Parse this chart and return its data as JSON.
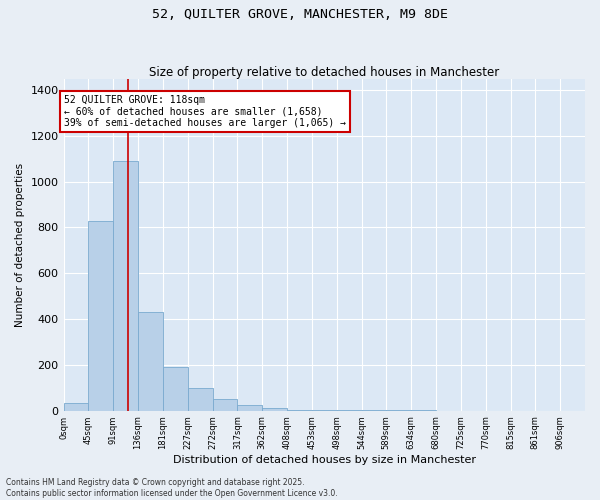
{
  "title_line1": "52, QUILTER GROVE, MANCHESTER, M9 8DE",
  "title_line2": "Size of property relative to detached houses in Manchester",
  "xlabel": "Distribution of detached houses by size in Manchester",
  "ylabel": "Number of detached properties",
  "bar_labels": [
    "0sqm",
    "45sqm",
    "91sqm",
    "136sqm",
    "181sqm",
    "227sqm",
    "272sqm",
    "317sqm",
    "362sqm",
    "408sqm",
    "453sqm",
    "498sqm",
    "544sqm",
    "589sqm",
    "634sqm",
    "680sqm",
    "725sqm",
    "770sqm",
    "815sqm",
    "861sqm",
    "906sqm"
  ],
  "bar_values": [
    35,
    830,
    1090,
    430,
    190,
    100,
    50,
    25,
    10,
    5,
    3,
    2,
    1,
    1,
    1,
    0,
    0,
    0,
    0,
    0,
    0
  ],
  "bar_color": "#b8d0e8",
  "bar_edge_color": "#7aaacf",
  "vline_color": "#cc0000",
  "ylim": [
    0,
    1450
  ],
  "yticks": [
    0,
    200,
    400,
    600,
    800,
    1000,
    1200,
    1400
  ],
  "annotation_text": "52 QUILTER GROVE: 118sqm\n← 60% of detached houses are smaller (1,658)\n39% of semi-detached houses are larger (1,065) →",
  "annotation_box_color": "#ffffff",
  "annotation_box_edge_color": "#cc0000",
  "footer_text": "Contains HM Land Registry data © Crown copyright and database right 2025.\nContains public sector information licensed under the Open Government Licence v3.0.",
  "bg_color": "#e8eef5",
  "plot_bg_color": "#dce8f5",
  "grid_color": "#ffffff",
  "title1_fontsize": 9.5,
  "title2_fontsize": 8.5,
  "ylabel_fontsize": 7.5,
  "xlabel_fontsize": 8,
  "ytick_fontsize": 8,
  "xtick_fontsize": 6,
  "annotation_fontsize": 7,
  "footer_fontsize": 5.5
}
